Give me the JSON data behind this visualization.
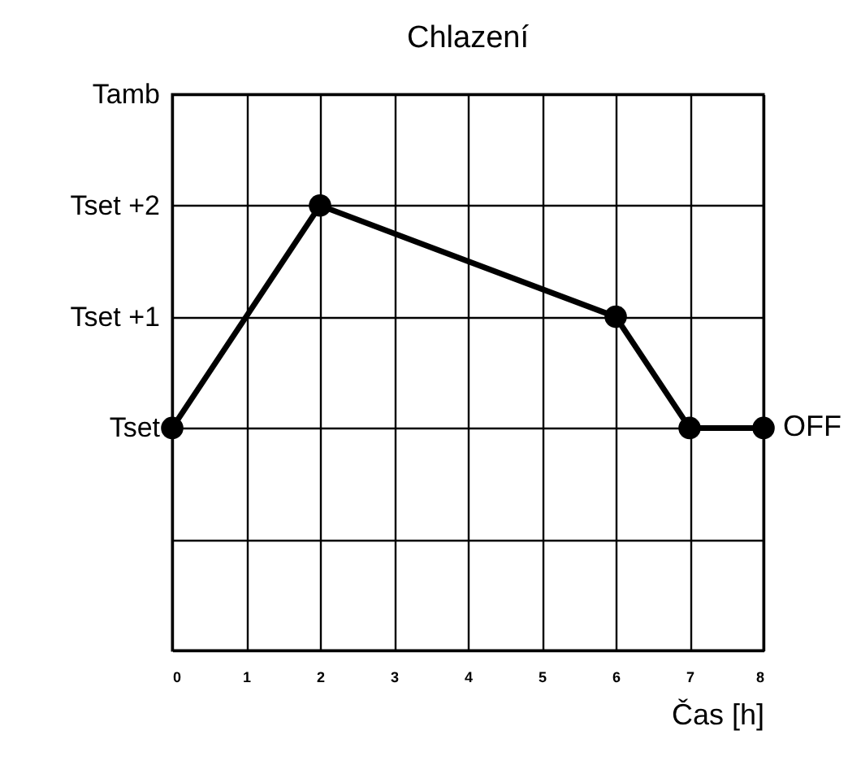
{
  "chart_data": {
    "type": "line",
    "title": "Chlazení",
    "xlabel": "Čas [h]",
    "x": [
      0,
      2,
      6,
      7,
      8
    ],
    "series": [
      {
        "color": "#000000",
        "values": [
          0,
          2,
          1,
          0,
          0
        ]
      }
    ],
    "xlim": [
      0,
      8
    ],
    "xticks": [
      0,
      1,
      2,
      3,
      4,
      5,
      6,
      7,
      8
    ],
    "ylim": [
      -2,
      3
    ],
    "yticks": [
      {
        "value": -2,
        "label": null
      },
      {
        "value": -1,
        "label": null
      },
      {
        "value": 0,
        "label": "Tset"
      },
      {
        "value": 1,
        "label": "Tset +1"
      },
      {
        "value": 2,
        "label": "Tset +2"
      },
      {
        "value": 3,
        "label": "Tamb"
      }
    ],
    "grid": true,
    "marker": "circle",
    "line_style": "solid",
    "annotations": [
      {
        "text": "OFF",
        "x": 8,
        "y": 0
      }
    ]
  }
}
